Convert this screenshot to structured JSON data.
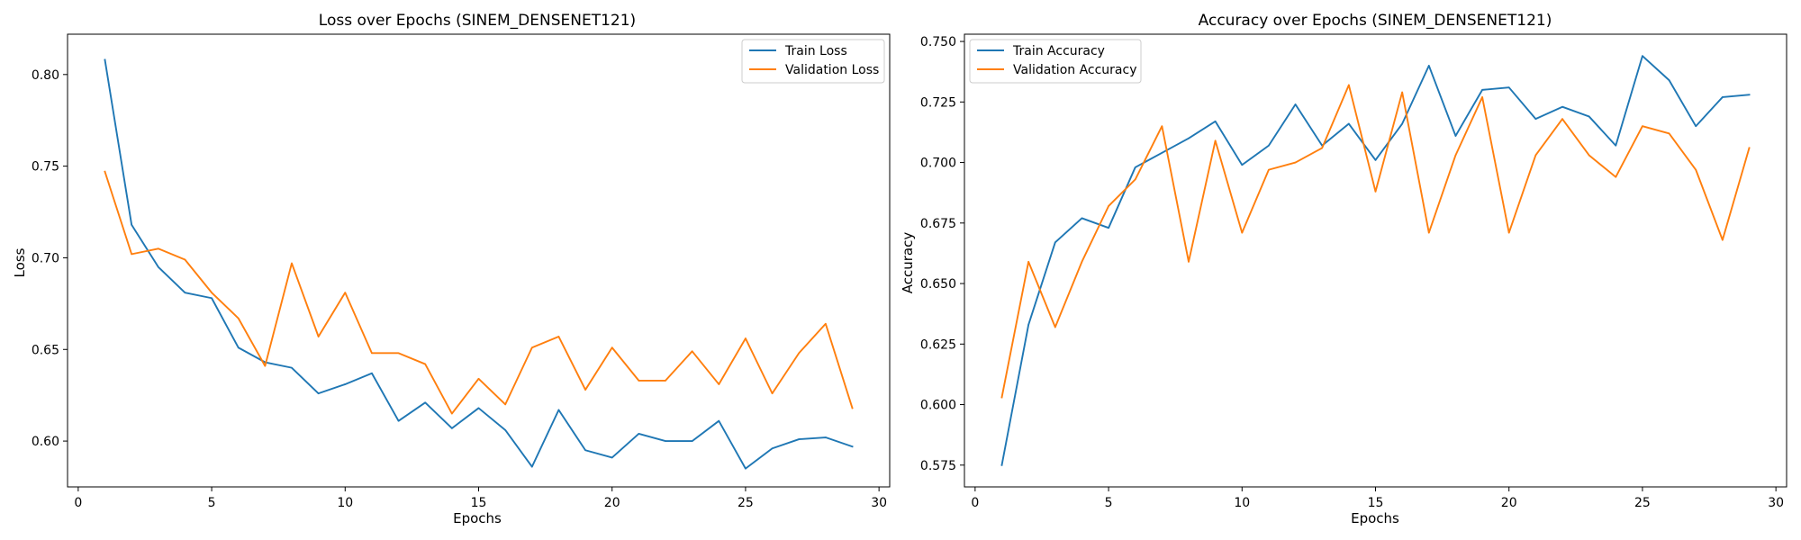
{
  "chart_data": [
    {
      "type": "line",
      "title": "Loss over Epochs (SINEM_DENSENET121)",
      "xlabel": "Epochs",
      "ylabel": "Loss",
      "xlim": [
        -0.4,
        30.4
      ],
      "ylim": [
        0.575,
        0.822
      ],
      "xticks": [
        0,
        5,
        10,
        15,
        20,
        25,
        30
      ],
      "yticks": [
        0.6,
        0.65,
        0.7,
        0.75,
        0.8
      ],
      "ytick_labels": [
        "0.60",
        "0.65",
        "0.70",
        "0.75",
        "0.80"
      ],
      "grid": false,
      "legend_position": "top-right",
      "x": [
        1,
        2,
        3,
        4,
        5,
        6,
        7,
        8,
        9,
        10,
        11,
        12,
        13,
        14,
        15,
        16,
        17,
        18,
        19,
        20,
        21,
        22,
        23,
        24,
        25,
        26,
        27,
        28,
        29
      ],
      "series": [
        {
          "name": "Train Loss",
          "color": "#1f77b4",
          "values": [
            0.808,
            0.718,
            0.695,
            0.681,
            0.678,
            0.651,
            0.643,
            0.64,
            0.626,
            0.631,
            0.637,
            0.611,
            0.621,
            0.607,
            0.618,
            0.606,
            0.586,
            0.617,
            0.595,
            0.591,
            0.604,
            0.6,
            0.6,
            0.611,
            0.585,
            0.596,
            0.601,
            0.602,
            0.597
          ]
        },
        {
          "name": "Validation Loss",
          "color": "#ff7f0e",
          "values": [
            0.747,
            0.702,
            0.705,
            0.699,
            0.681,
            0.667,
            0.641,
            0.697,
            0.657,
            0.681,
            0.648,
            0.648,
            0.642,
            0.615,
            0.634,
            0.62,
            0.651,
            0.657,
            0.628,
            0.651,
            0.633,
            0.633,
            0.649,
            0.631,
            0.656,
            0.626,
            0.648,
            0.664,
            0.618
          ]
        }
      ]
    },
    {
      "type": "line",
      "title": "Accuracy over Epochs (SINEM_DENSENET121)",
      "xlabel": "Epochs",
      "ylabel": "Accuracy",
      "xlim": [
        -0.4,
        30.4
      ],
      "ylim": [
        0.566,
        0.753
      ],
      "xticks": [
        0,
        5,
        10,
        15,
        20,
        25,
        30
      ],
      "yticks": [
        0.575,
        0.6,
        0.625,
        0.65,
        0.675,
        0.7,
        0.725,
        0.75
      ],
      "ytick_labels": [
        "0.575",
        "0.600",
        "0.625",
        "0.650",
        "0.675",
        "0.700",
        "0.725",
        "0.750"
      ],
      "grid": false,
      "legend_position": "top-left",
      "x": [
        1,
        2,
        3,
        4,
        5,
        6,
        7,
        8,
        9,
        10,
        11,
        12,
        13,
        14,
        15,
        16,
        17,
        18,
        19,
        20,
        21,
        22,
        23,
        24,
        25,
        26,
        27,
        28,
        29
      ],
      "series": [
        {
          "name": "Train Accuracy",
          "color": "#1f77b4",
          "values": [
            0.575,
            0.633,
            0.667,
            0.677,
            0.673,
            0.698,
            0.704,
            0.71,
            0.717,
            0.699,
            0.707,
            0.724,
            0.707,
            0.716,
            0.701,
            0.716,
            0.74,
            0.711,
            0.73,
            0.731,
            0.718,
            0.723,
            0.719,
            0.707,
            0.744,
            0.734,
            0.715,
            0.727,
            0.728
          ]
        },
        {
          "name": "Validation Accuracy",
          "color": "#ff7f0e",
          "values": [
            0.603,
            0.659,
            0.632,
            0.659,
            0.682,
            0.693,
            0.715,
            0.659,
            0.709,
            0.671,
            0.697,
            0.7,
            0.706,
            0.732,
            0.688,
            0.729,
            0.671,
            0.703,
            0.727,
            0.671,
            0.703,
            0.718,
            0.703,
            0.694,
            0.715,
            0.712,
            0.697,
            0.668,
            0.706
          ]
        }
      ]
    }
  ]
}
